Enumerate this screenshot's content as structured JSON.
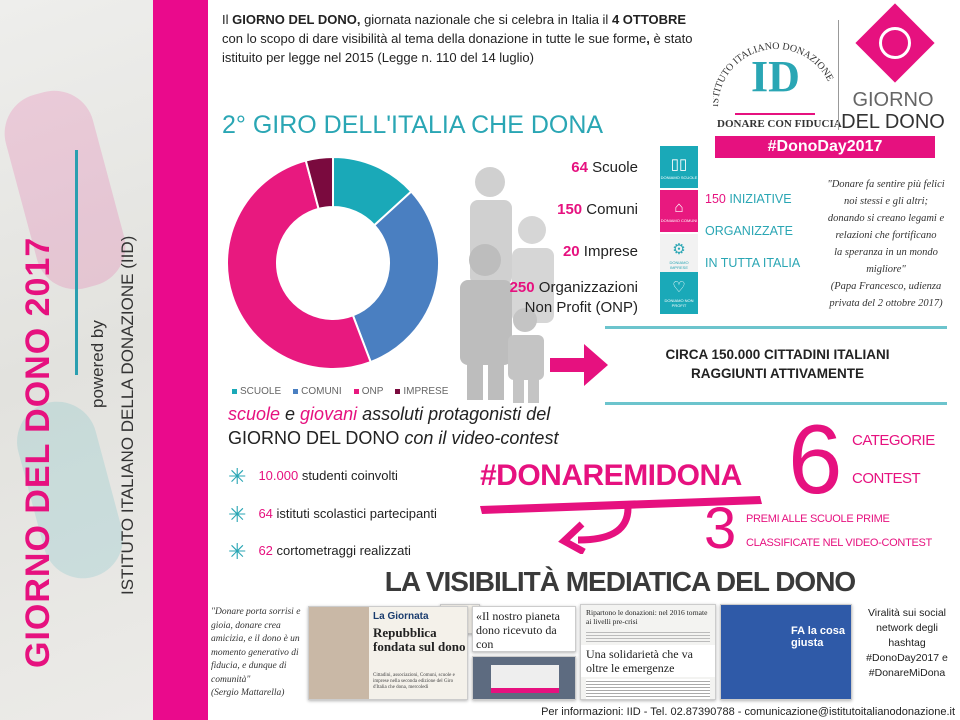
{
  "side": {
    "title": "GIORNO DEL DONO 2017",
    "powered_by": "powered by",
    "institute": "ISTITUTO ITALIANO DELLA DONAZIONE (IID)"
  },
  "intro": {
    "p1": "Il ",
    "b1": "GIORNO DEL DONO,",
    "p2": " giornata nazionale che si celebra in Italia il ",
    "b2": "4 OTTOBRE",
    "p3": " con lo scopo di dare visibilità al tema della donazione in tutte le sue forme",
    "b3": ",",
    "p4": " è stato istituito per legge nel 2015 (Legge n. 110 del 14 luglio)"
  },
  "logos": {
    "iid_arc": "ISTITUTO ITALIANO DONAZIONE",
    "iid_letters": "ID",
    "iid_tagline": "DONARE CON FIDUCIA",
    "gdd_line1": "GIORNO",
    "gdd_line2": "DEL DONO",
    "hashtag": "#DonoDay2017"
  },
  "title": "2° GIRO DELL'ITALIA CHE DONA",
  "chart_data": {
    "type": "pie",
    "donut": true,
    "categories": [
      "SCUOLE",
      "COMUNI",
      "ONP",
      "IMPRESE"
    ],
    "values": [
      64,
      150,
      250,
      20
    ],
    "colors": [
      "#1aa9b8",
      "#4a7fc1",
      "#e8197f",
      "#7a0a3e"
    ],
    "legend_position": "bottom"
  },
  "stats": [
    {
      "num": "64",
      "label": " Scuole",
      "icon": "book-icon",
      "color": "#1aa9b8",
      "tag": "DONIAMO SCUOLE"
    },
    {
      "num": "150",
      "label": " Comuni",
      "icon": "townhall-icon",
      "color": "#e8197f",
      "tag": "DONIAMO COMUNI"
    },
    {
      "num": "20",
      "label": " Imprese",
      "icon": "gears-icon",
      "color": "#f2f2f2",
      "tag": "DONIAMO IMPRESE"
    },
    {
      "num": "250",
      "label": " Organizzazioni",
      "label2": "Non Profit (ONP)",
      "icon": "heart-icon",
      "color": "#1aa9b8",
      "tag": "DONIAMO NON PROFIT"
    }
  ],
  "iniziative": {
    "num": "150",
    "l1": " INIZIATIVE",
    "l2": "ORGANIZZATE",
    "l3": "IN TUTTA ITALIA"
  },
  "quote_pope": {
    "lines": [
      "\"Donare fa sentire più felici",
      "noi stessi e gli altri;",
      "donando si creano legami e",
      "relazioni che fortificano",
      "la speranza in un mondo",
      "migliore\"",
      "(Papa Francesco, udienza",
      "privata del 2 ottobre 2017)"
    ]
  },
  "circa": {
    "l1": "CIRCA 150.000 CITTADINI ITALIANI",
    "l2": "RAGGIUNTI ATTIVAMENTE"
  },
  "proto": {
    "w1": "scuole",
    "w2": " e ",
    "w3": "giovani",
    "w4": " assoluti protagonisti del",
    "l2a": "GIORNO DEL DONO",
    "l2b": " con il video-contest"
  },
  "bullets": [
    {
      "num": "10.000",
      "text": " studenti coinvolti"
    },
    {
      "num": "64",
      "text": " istituti scolastici partecipanti"
    },
    {
      "num": "62",
      "text": " cortometraggi realizzati"
    }
  ],
  "hashtag": "#DONAREMIDONA",
  "contest": {
    "num": "6",
    "l1": "CATEGORIE",
    "l2": "CONTEST"
  },
  "prizes": {
    "num": "3",
    "l1": "PREMI ALLE SCUOLE PRIME",
    "l2": "CLASSIFICATE NEL VIDEO-CONTEST"
  },
  "visibility_title": "LA VISIBILITÀ MEDIATICA DEL DONO",
  "quote_mattarella": {
    "lines": [
      "\"Donare porta sorrisi e",
      "gioia, donare crea",
      "amicizia, e il dono è un",
      "momento generativo di",
      "fiducia, e dunque di",
      "comunità\"",
      "(Sergio Mattarella)"
    ]
  },
  "media": {
    "clip1_head": "La Giornata",
    "clip1_title": "Repubblica fondata sul dono",
    "clip1_body": "Cittadini, associazioni, Comuni, scuole e imprese nella seconda edizione del Giro d'Italia che dona, mercoledì",
    "clip2_title": "«Il nostro pianeta dono ricevuto da con",
    "clip3_head": "Ripartono le donazioni: nel 2016 tornate ai livelli pre-crisi",
    "clip4_title": "Una solidarietà che va oltre le emergenze",
    "tv_text": "FA la cosa giusta"
  },
  "viral": {
    "lines": [
      "Viralità sui social",
      "network degli",
      "hashtag",
      "#DonoDay2017 e",
      "#DonareMiDona"
    ]
  },
  "footer": "Per informazioni: IID - Tel. 02.87390788 - comunicazione@istitutoitalianodonazione.it"
}
